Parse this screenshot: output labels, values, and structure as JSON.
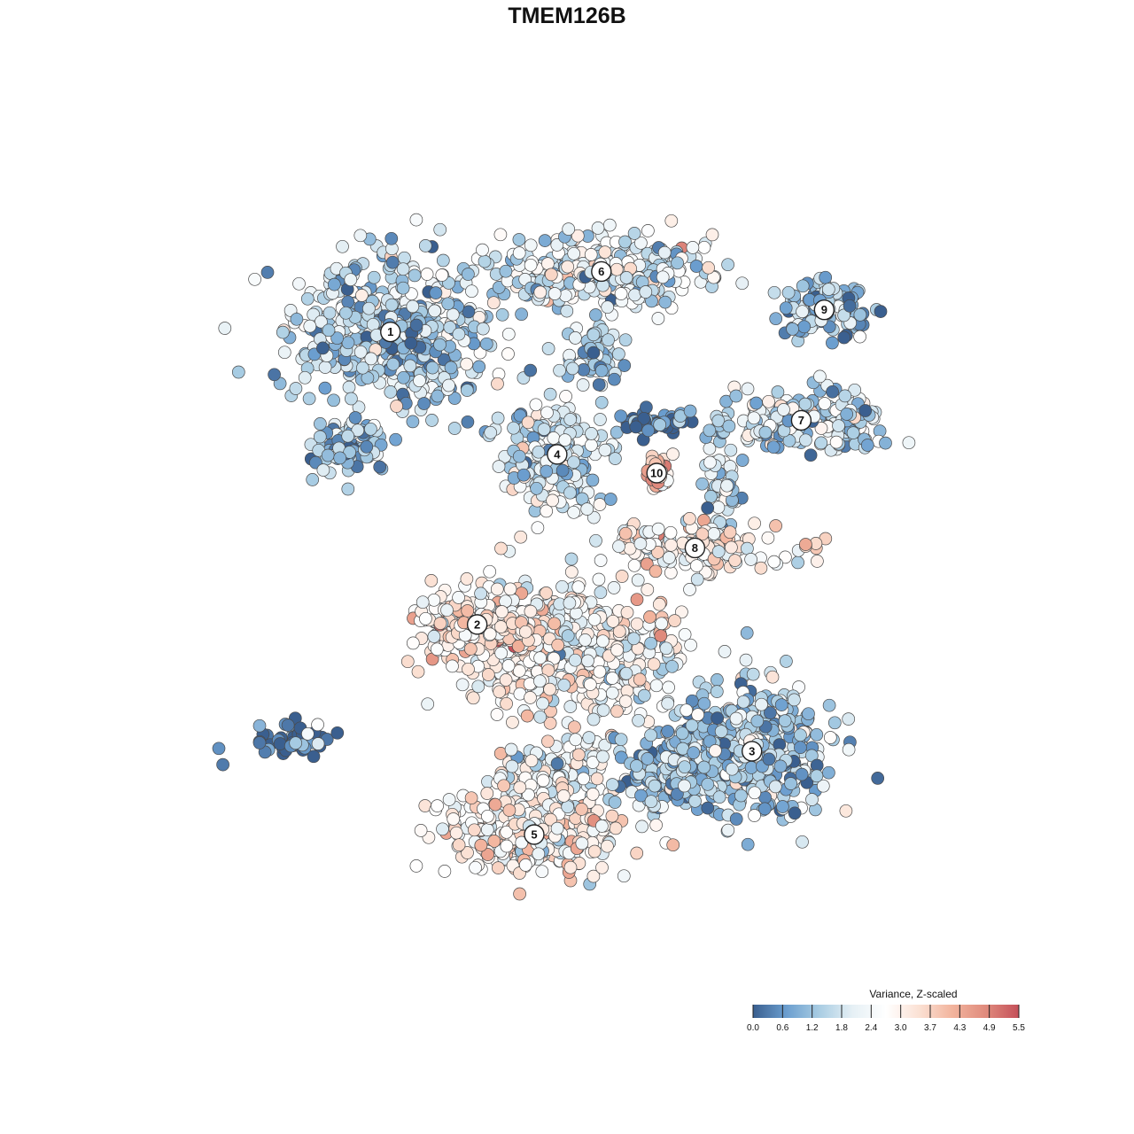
{
  "chart_data": {
    "type": "scatter",
    "title": "TMEM126B",
    "xlabel": "",
    "ylabel": "",
    "xlim": [
      -50,
      50
    ],
    "ylim": [
      -50,
      50
    ],
    "grid": false,
    "legend": {
      "title": "Variance, Z-scaled",
      "placement": "bottom-right",
      "ticks": [
        "0.0",
        "0.6",
        "1.2",
        "1.8",
        "2.4",
        "3.0",
        "3.7",
        "4.3",
        "4.9",
        "5.5"
      ],
      "range": [
        0,
        5.5
      ],
      "colors": [
        "#3a5f8f",
        "#6b9ecf",
        "#a9cde3",
        "#e6f0f5",
        "#ffffff",
        "#fbe1d4",
        "#f2b49d",
        "#e08b7d",
        "#c4505a"
      ]
    },
    "clusters": [
      {
        "label": "1",
        "x": -21.8,
        "y": 26.6,
        "spread": [
          9.5,
          7.5
        ],
        "n": 520,
        "mean": 1.6
      },
      {
        "label": "6",
        "x": 3.0,
        "y": 33.7,
        "spread": [
          10.5,
          3.2
        ],
        "n": 320,
        "mean": 2.1
      },
      {
        "label": "9",
        "x": 29.2,
        "y": 29.2,
        "spread": [
          4.5,
          2.6
        ],
        "n": 110,
        "mean": 1.2
      },
      {
        "label": "4",
        "x": -2.2,
        "y": 12.2,
        "spread": [
          4.5,
          5.0
        ],
        "n": 220,
        "mean": 1.9
      },
      {
        "label": "10",
        "x": 9.5,
        "y": 10.0,
        "spread": [
          1.2,
          1.6
        ],
        "n": 35,
        "mean": 3.9
      },
      {
        "label": "7",
        "x": 26.5,
        "y": 16.2,
        "spread": [
          8.5,
          2.8
        ],
        "n": 210,
        "mean": 1.8
      },
      {
        "label": "8",
        "x": 14.0,
        "y": 1.2,
        "spread": [
          9.0,
          2.2
        ],
        "n": 150,
        "mean": 2.9
      },
      {
        "label": "2",
        "x": -11.6,
        "y": -7.8,
        "spread": [
          5.5,
          2.8
        ],
        "n": 200,
        "mean": 3.2
      },
      {
        "label": "3",
        "x": 20.7,
        "y": -22.7,
        "spread": [
          8.0,
          6.0
        ],
        "n": 420,
        "mean": 1.4
      },
      {
        "label": "5",
        "x": -4.9,
        "y": -32.5,
        "spread": [
          8.5,
          3.8
        ],
        "n": 320,
        "mean": 2.9
      }
    ],
    "bridges": [
      {
        "x": -0.5,
        "y": -10.5,
        "spread": [
          11.0,
          6.5
        ],
        "n": 520,
        "mean": 2.7
      },
      {
        "x": -2.5,
        "y": -25.0,
        "spread": [
          5.5,
          3.5
        ],
        "n": 160,
        "mean": 2.3
      },
      {
        "x": 11.5,
        "y": -25.0,
        "spread": [
          4.5,
          3.5
        ],
        "n": 170,
        "mean": 1.3
      },
      {
        "x": 9.0,
        "y": 15.8,
        "spread": [
          3.5,
          1.0
        ],
        "n": 55,
        "mean": 0.05
      },
      {
        "x": 2.0,
        "y": 24.0,
        "spread": [
          3.0,
          3.0
        ],
        "n": 60,
        "mean": 1.3
      },
      {
        "x": -33.0,
        "y": -21.5,
        "spread": [
          3.5,
          1.6
        ],
        "n": 55,
        "mean": 0.4
      },
      {
        "x": 17.5,
        "y": 7.5,
        "spread": [
          2.0,
          3.5
        ],
        "n": 55,
        "mean": 1.9
      },
      {
        "x": -27.0,
        "y": 13.0,
        "spread": [
          4.0,
          3.5
        ],
        "n": 90,
        "mean": 1.2
      },
      {
        "x": -9.5,
        "y": -9.0,
        "spread": [
          2.0,
          1.2
        ],
        "n": 30,
        "mean": 5.2
      }
    ]
  }
}
